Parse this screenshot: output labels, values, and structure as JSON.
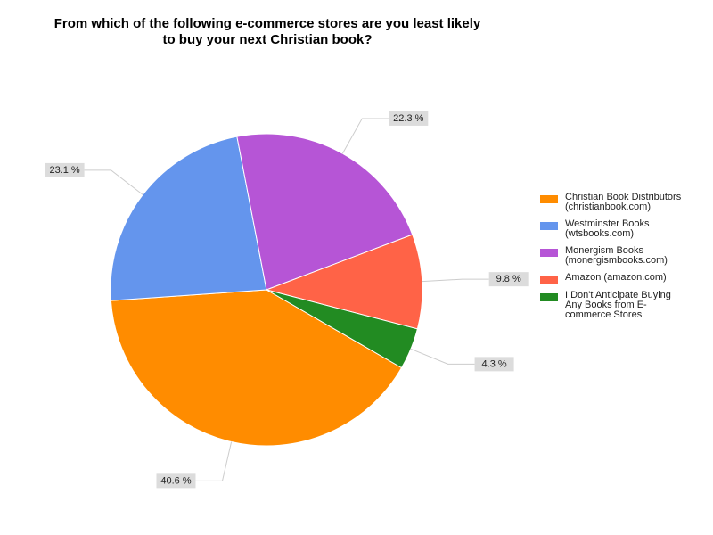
{
  "chart_data": {
    "type": "pie",
    "title": "From which of the following e-commerce stores are you least likely to buy your next Christian book?",
    "categories": [
      "Christian Book Distributors (christianbook.com)",
      "Westminster Books (wtsbooks.com)",
      "Monergism Books (monergismbooks.com)",
      "Amazon (amazon.com)",
      "I Don't Anticipate Buying Any Books from E-commerce Stores"
    ],
    "values": [
      40.6,
      23.1,
      22.3,
      9.8,
      4.3
    ],
    "value_labels": [
      "40.6 %",
      "23.1 %",
      "22.3 %",
      "9.8 %",
      "4.3 %"
    ],
    "colors": [
      "#ff8c00",
      "#6495ed",
      "#b655d6",
      "#ff6347",
      "#228b22"
    ],
    "legend": "right"
  }
}
